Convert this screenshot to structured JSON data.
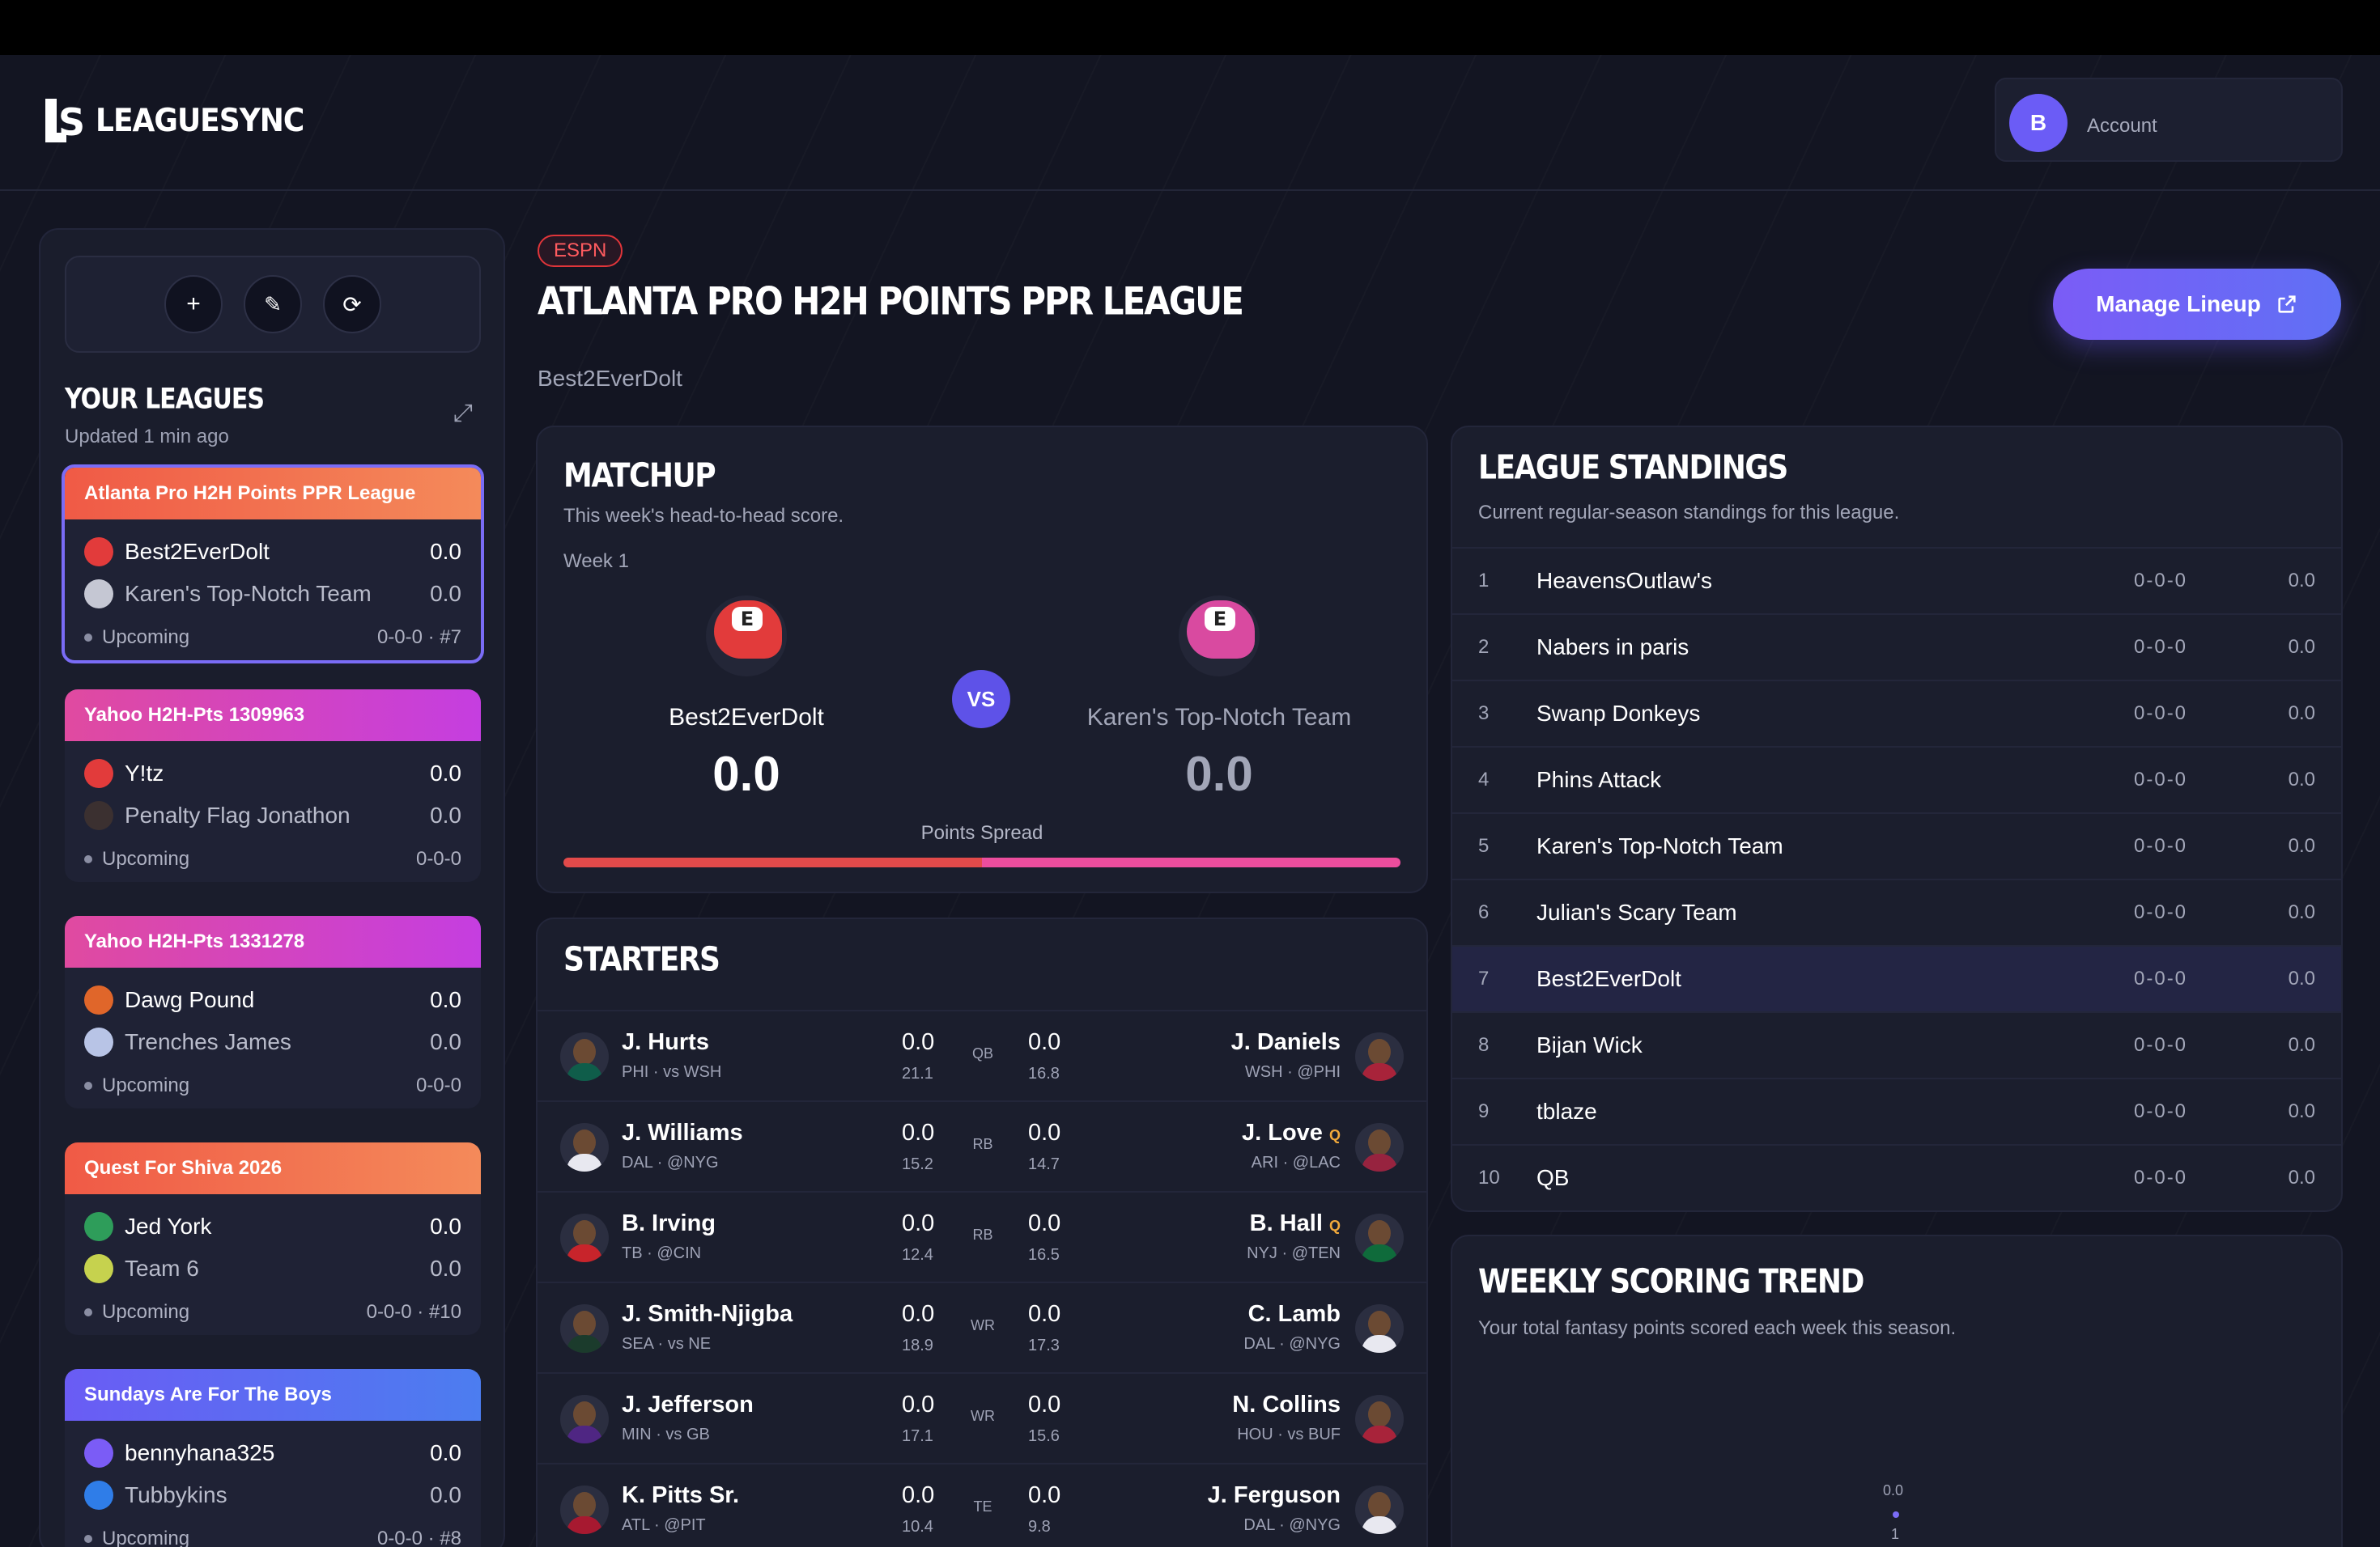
{
  "app": {
    "name": "LEAGUESYNC"
  },
  "account": {
    "initial": "B",
    "label": "Account"
  },
  "sidebar": {
    "title": "YOUR LEAGUES",
    "updated": "Updated 1 min ago",
    "leagues": [
      {
        "name": "Atlanta Pro H2H Points PPR League",
        "color": "#f0624a",
        "team1": "Best2EverDolt",
        "score1": "0.0",
        "team2": "Karen's Top-Notch Team",
        "score2": "0.0",
        "status": "Upcoming",
        "record": "0-0-0 · #7"
      },
      {
        "name": "Yahoo H2H-Pts 1309963",
        "color": "#d63fc8",
        "team1": "Y!tz",
        "score1": "0.0",
        "team2": "Penalty Flag Jonathon",
        "score2": "0.0",
        "status": "Upcoming",
        "record": "0-0-0"
      },
      {
        "name": "Yahoo H2H-Pts 1331278",
        "color": "#d63fc8",
        "team1": "Dawg Pound",
        "score1": "0.0",
        "team2": "Trenches James",
        "score2": "0.0",
        "status": "Upcoming",
        "record": "0-0-0"
      },
      {
        "name": "Quest For Shiva 2026",
        "color": "#f0624a",
        "team1": "Jed York",
        "score1": "0.0",
        "team2": "Team 6",
        "score2": "0.0",
        "status": "Upcoming",
        "record": "0-0-0 · #10"
      },
      {
        "name": "Sundays Are For The Boys",
        "color": "#5b6cf0",
        "team1": "bennyhana325",
        "score1": "0.0",
        "team2": "Tubbykins",
        "score2": "0.0",
        "status": "Upcoming",
        "record": "0-0-0 · #8"
      }
    ]
  },
  "league": {
    "platform": "ESPN",
    "title": "ATLANTA PRO H2H POINTS PPR LEAGUE",
    "team": "Best2EverDolt",
    "manage_label": "Manage Lineup"
  },
  "matchup": {
    "title": "MATCHUP",
    "subtitle": "This week's head-to-head score.",
    "week": "Week 1",
    "home": {
      "name": "Best2EverDolt",
      "score": "0.0"
    },
    "away": {
      "name": "Karen's Top-Notch Team",
      "score": "0.0"
    },
    "vs": "VS",
    "spread_label": "Points Spread",
    "spread_home_fraction": 0.5
  },
  "starters": {
    "title": "STARTERS",
    "rows": [
      {
        "pos": "QB",
        "l_name": "J. Hurts",
        "l_meta": "PHI · vs WSH",
        "l_pts": "0.0",
        "l_proj": "21.1",
        "r_name": "J. Daniels",
        "r_meta": "WSH · @PHI",
        "r_pts": "0.0",
        "r_proj": "16.8",
        "r_tag": ""
      },
      {
        "pos": "RB",
        "l_name": "J. Williams",
        "l_meta": "DAL · @NYG",
        "l_pts": "0.0",
        "l_proj": "15.2",
        "r_name": "J. Love",
        "r_meta": "ARI · @LAC",
        "r_pts": "0.0",
        "r_proj": "14.7",
        "r_tag": "Q"
      },
      {
        "pos": "RB",
        "l_name": "B. Irving",
        "l_meta": "TB · @CIN",
        "l_pts": "0.0",
        "l_proj": "12.4",
        "r_name": "B. Hall",
        "r_meta": "NYJ · @TEN",
        "r_pts": "0.0",
        "r_proj": "16.5",
        "r_tag": "Q"
      },
      {
        "pos": "WR",
        "l_name": "J. Smith-Njigba",
        "l_meta": "SEA · vs NE",
        "l_pts": "0.0",
        "l_proj": "18.9",
        "r_name": "C. Lamb",
        "r_meta": "DAL · @NYG",
        "r_pts": "0.0",
        "r_proj": "17.3",
        "r_tag": ""
      },
      {
        "pos": "WR",
        "l_name": "J. Jefferson",
        "l_meta": "MIN · vs GB",
        "l_pts": "0.0",
        "l_proj": "17.1",
        "r_name": "N. Collins",
        "r_meta": "HOU · vs BUF",
        "r_pts": "0.0",
        "r_proj": "15.6",
        "r_tag": ""
      },
      {
        "pos": "TE",
        "l_name": "K. Pitts Sr.",
        "l_meta": "ATL · @PIT",
        "l_pts": "0.0",
        "l_proj": "10.4",
        "r_name": "J. Ferguson",
        "r_meta": "DAL · @NYG",
        "r_pts": "0.0",
        "r_proj": "9.8",
        "r_tag": ""
      }
    ]
  },
  "standings": {
    "title": "LEAGUE STANDINGS",
    "subtitle": "Current regular-season standings for this league.",
    "rows": [
      {
        "rank": "1",
        "team": "HeavensOutlaw's",
        "record": "0-0-0",
        "pts": "0.0"
      },
      {
        "rank": "2",
        "team": "Nabers in paris",
        "record": "0-0-0",
        "pts": "0.0"
      },
      {
        "rank": "3",
        "team": "Swanp Donkeys",
        "record": "0-0-0",
        "pts": "0.0"
      },
      {
        "rank": "4",
        "team": "Phins Attack",
        "record": "0-0-0",
        "pts": "0.0"
      },
      {
        "rank": "5",
        "team": "Karen's Top-Notch Team",
        "record": "0-0-0",
        "pts": "0.0"
      },
      {
        "rank": "6",
        "team": "Julian's Scary Team",
        "record": "0-0-0",
        "pts": "0.0"
      },
      {
        "rank": "7",
        "team": "Best2EverDolt",
        "record": "0-0-0",
        "pts": "0.0"
      },
      {
        "rank": "8",
        "team": "Bijan Wick",
        "record": "0-0-0",
        "pts": "0.0"
      },
      {
        "rank": "9",
        "team": "tblaze",
        "record": "0-0-0",
        "pts": "0.0"
      },
      {
        "rank": "10",
        "team": "QB",
        "record": "0-0-0",
        "pts": "0.0"
      }
    ]
  },
  "trend": {
    "title": "WEEKLY SCORING TREND",
    "subtitle": "Your total fantasy points scored each week this season.",
    "point_label": "0.0",
    "week_label": "1"
  }
}
